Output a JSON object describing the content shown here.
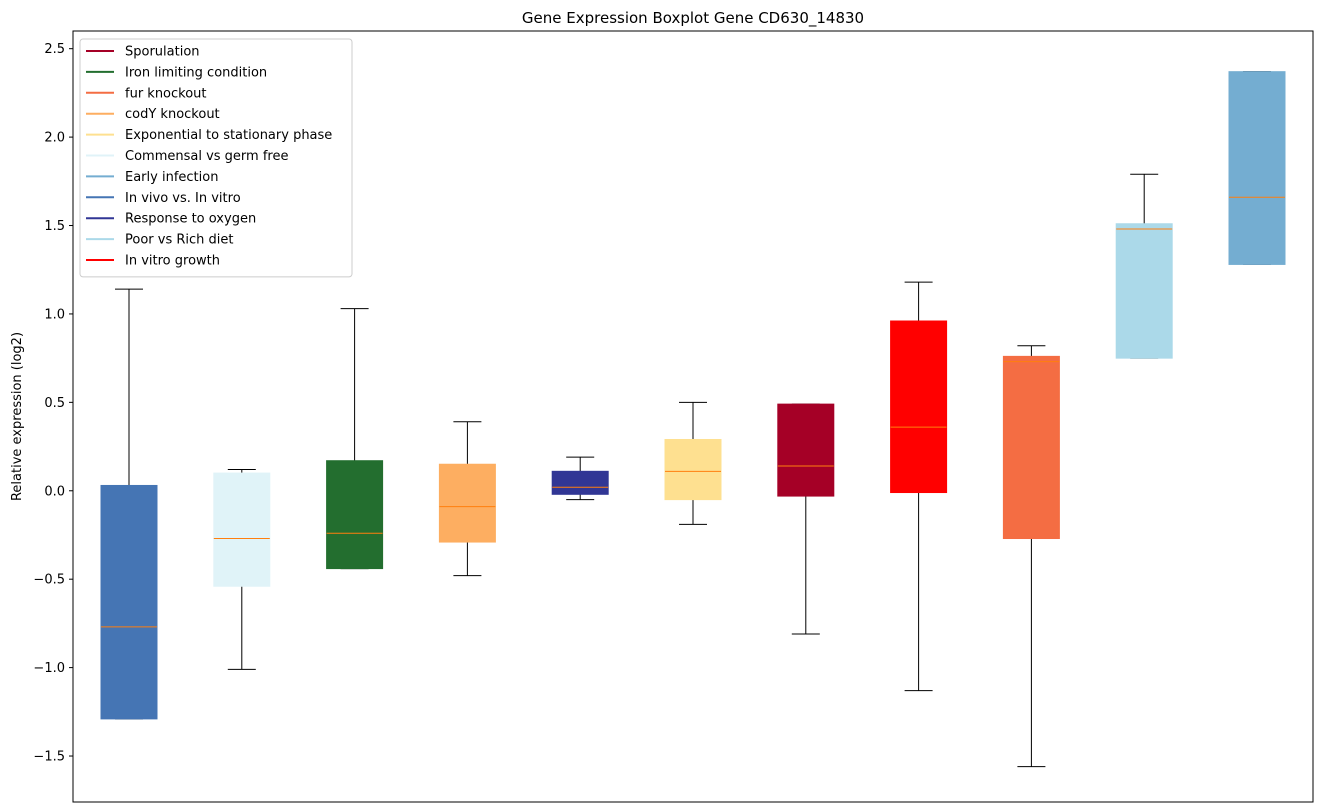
{
  "chart_data": {
    "type": "boxplot",
    "title": "Gene Expression Boxplot Gene CD630_14830",
    "xlabel": "",
    "ylabel": "Relative expression (log2)",
    "ylim": [
      -1.76,
      2.6
    ],
    "yticks": [
      -1.5,
      -1.0,
      -0.5,
      0.0,
      0.5,
      1.0,
      1.5,
      2.0,
      2.5
    ],
    "ytick_labels": [
      "−1.5",
      "−1.0",
      "−0.5",
      "0.0",
      "0.5",
      "1.0",
      "1.5",
      "2.0",
      "2.5"
    ],
    "grid": false,
    "legend_position": "top-left",
    "legend": [
      {
        "label": "Sporulation",
        "color": "#a50026"
      },
      {
        "label": "Iron limiting condition",
        "color": "#236e2f"
      },
      {
        "label": "fur knockout",
        "color": "#f46d43"
      },
      {
        "label": "codY knockout",
        "color": "#fdae61"
      },
      {
        "label": "Exponential to stationary phase",
        "color": "#fee090"
      },
      {
        "label": "Commensal vs germ free",
        "color": "#e0f3f8"
      },
      {
        "label": "Early infection",
        "color": "#74add1"
      },
      {
        "label": "In vivo vs. In vitro",
        "color": "#4575b4"
      },
      {
        "label": "Response to oxygen",
        "color": "#313695"
      },
      {
        "label": "Poor vs Rich diet",
        "color": "#abd9e9"
      },
      {
        "label": "In vitro growth",
        "color": "#ff0000"
      }
    ],
    "series": [
      {
        "color": "#4575b4",
        "whisker_low": -1.29,
        "q1": -1.29,
        "median": -0.77,
        "q3": 0.03,
        "whisker_high": 1.14
      },
      {
        "color": "#e0f3f8",
        "whisker_low": -1.01,
        "q1": -0.54,
        "median": -0.27,
        "q3": 0.1,
        "whisker_high": 0.12
      },
      {
        "color": "#236e2f",
        "whisker_low": -0.44,
        "q1": -0.44,
        "median": -0.24,
        "q3": 0.17,
        "whisker_high": 1.03
      },
      {
        "color": "#fdae61",
        "whisker_low": -0.48,
        "q1": -0.29,
        "median": -0.09,
        "q3": 0.15,
        "whisker_high": 0.39
      },
      {
        "color": "#313695",
        "whisker_low": -0.05,
        "q1": -0.02,
        "median": 0.02,
        "q3": 0.11,
        "whisker_high": 0.19
      },
      {
        "color": "#fee090",
        "whisker_low": -0.19,
        "q1": -0.05,
        "median": 0.11,
        "q3": 0.29,
        "whisker_high": 0.5
      },
      {
        "color": "#a50026",
        "whisker_low": -0.81,
        "q1": -0.03,
        "median": 0.14,
        "q3": 0.49,
        "whisker_high": 0.49
      },
      {
        "color": "#ff0000",
        "whisker_low": -1.13,
        "q1": -0.01,
        "median": 0.36,
        "q3": 0.96,
        "whisker_high": 1.18
      },
      {
        "color": "#f46d43",
        "whisker_low": -1.56,
        "q1": -0.27,
        "median": 0.73,
        "q3": 0.76,
        "whisker_high": 0.82
      },
      {
        "color": "#abd9e9",
        "whisker_low": 0.75,
        "q1": 0.75,
        "median": 1.48,
        "q3": 1.51,
        "whisker_high": 1.79
      },
      {
        "color": "#74add1",
        "whisker_low": 1.28,
        "q1": 1.28,
        "median": 1.66,
        "q3": 2.37,
        "whisker_high": 2.37
      }
    ],
    "median_color": "#ff7f0e"
  }
}
